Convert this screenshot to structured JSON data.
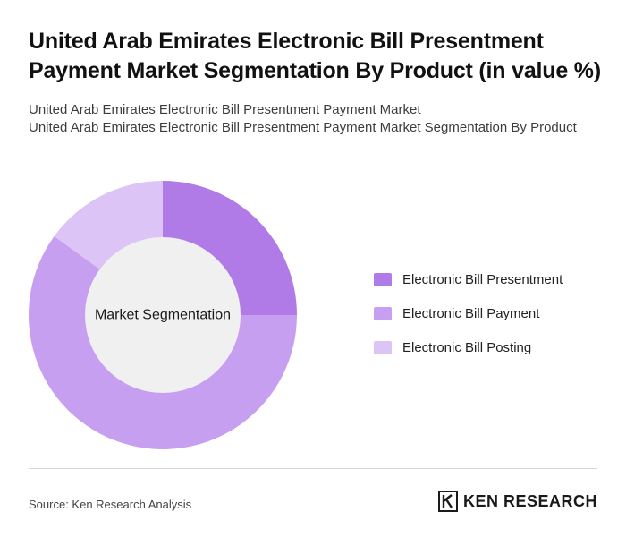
{
  "header": {
    "title": "United Arab Emirates Electronic Bill Presentment Payment Market Segmentation By Product (in value %)",
    "subtitle_line1": "United Arab Emirates Electronic Bill Presentment Payment Market",
    "subtitle_line2": "United Arab Emirates Electronic Bill Presentment Payment Market Segmentation By Product"
  },
  "chart_data": {
    "type": "pie",
    "title": "United Arab Emirates Electronic Bill Presentment Payment Market Segmentation By Product (in value %)",
    "center_label": "Market Segmentation",
    "legend_position": "right",
    "slices": [
      {
        "label": "Electronic Bill Presentment",
        "value": 25,
        "color": "#b07be6"
      },
      {
        "label": "Electronic Bill Payment",
        "value": 60,
        "color": "#c79ff0"
      },
      {
        "label": "Electronic Bill Posting",
        "value": 15,
        "color": "#dcc4f6"
      }
    ]
  },
  "footer": {
    "source": "Source: Ken Research Analysis",
    "brand": "KEN RESEARCH",
    "brand_icon": "ken-research-logo"
  },
  "colors": {
    "donut_hole": "#f0f0f0",
    "divider": "#d6d6d6"
  }
}
